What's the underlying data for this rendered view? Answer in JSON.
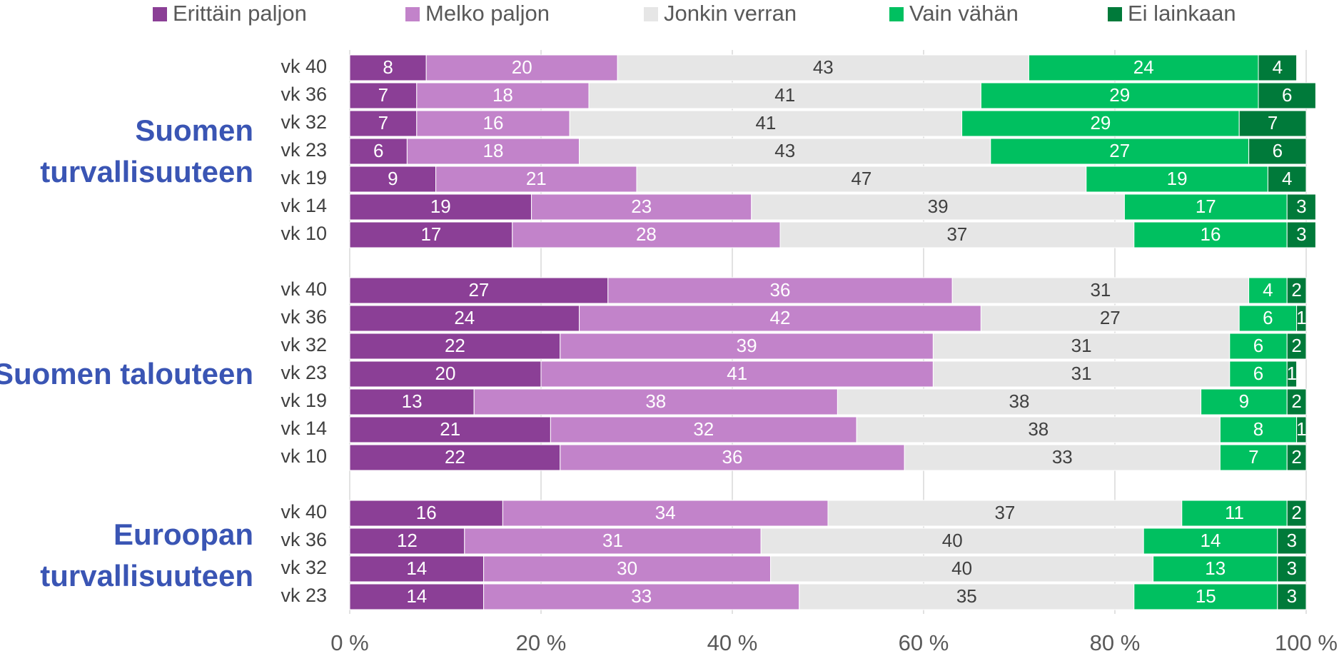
{
  "chart_data": {
    "type": "stacked_bar_horizontal",
    "groups": [
      {
        "label": "Suomen turvallisuuteen",
        "categories": [
          "vk 40",
          "vk 36",
          "vk 32",
          "vk 23",
          "vk 19",
          "vk 14",
          "vk 10"
        ]
      },
      {
        "label": "Suomen talouteen",
        "categories": [
          "vk 40",
          "vk 36",
          "vk 32",
          "vk 23",
          "vk 19",
          "vk 14",
          "vk 10"
        ]
      },
      {
        "label": "Euroopan turvallisuuteen",
        "categories": [
          "vk 40",
          "vk 36",
          "vk 32",
          "vk 23"
        ]
      }
    ],
    "series": [
      {
        "name": "Erittäin paljon",
        "color": "#8b3f96",
        "label_color": "#ffffff",
        "values": [
          8,
          7,
          7,
          6,
          9,
          19,
          17,
          27,
          24,
          22,
          20,
          13,
          21,
          22,
          16,
          12,
          14,
          14
        ]
      },
      {
        "name": "Melko paljon",
        "color": "#c283ca",
        "label_color": "#ffffff",
        "values": [
          20,
          18,
          16,
          18,
          21,
          23,
          28,
          36,
          42,
          39,
          41,
          38,
          32,
          36,
          34,
          31,
          30,
          33
        ]
      },
      {
        "name": "Jonkin verran",
        "color": "#e6e6e6",
        "label_color": "#404040",
        "values": [
          43,
          41,
          41,
          43,
          47,
          39,
          37,
          31,
          27,
          31,
          31,
          38,
          38,
          33,
          37,
          40,
          40,
          35
        ]
      },
      {
        "name": "Vain vähän",
        "color": "#00c060",
        "label_color": "#ffffff",
        "values": [
          24,
          29,
          29,
          27,
          19,
          17,
          16,
          4,
          6,
          6,
          6,
          9,
          8,
          7,
          11,
          14,
          13,
          15
        ]
      },
      {
        "name": "Ei lainkaan",
        "color": "#007a3a",
        "label_color": "#ffffff",
        "values": [
          4,
          6,
          7,
          6,
          4,
          3,
          3,
          2,
          1,
          2,
          1,
          2,
          1,
          2,
          2,
          3,
          3,
          3
        ]
      }
    ],
    "xlim": [
      0,
      100
    ],
    "xticks": [
      {
        "value": 0,
        "label": "0 %"
      },
      {
        "value": 20,
        "label": "20 %"
      },
      {
        "value": 40,
        "label": "40 %"
      },
      {
        "value": 60,
        "label": "60 %"
      },
      {
        "value": 80,
        "label": "80 %"
      },
      {
        "value": 100,
        "label": "100 %"
      }
    ],
    "grid": true,
    "legend": "top"
  }
}
